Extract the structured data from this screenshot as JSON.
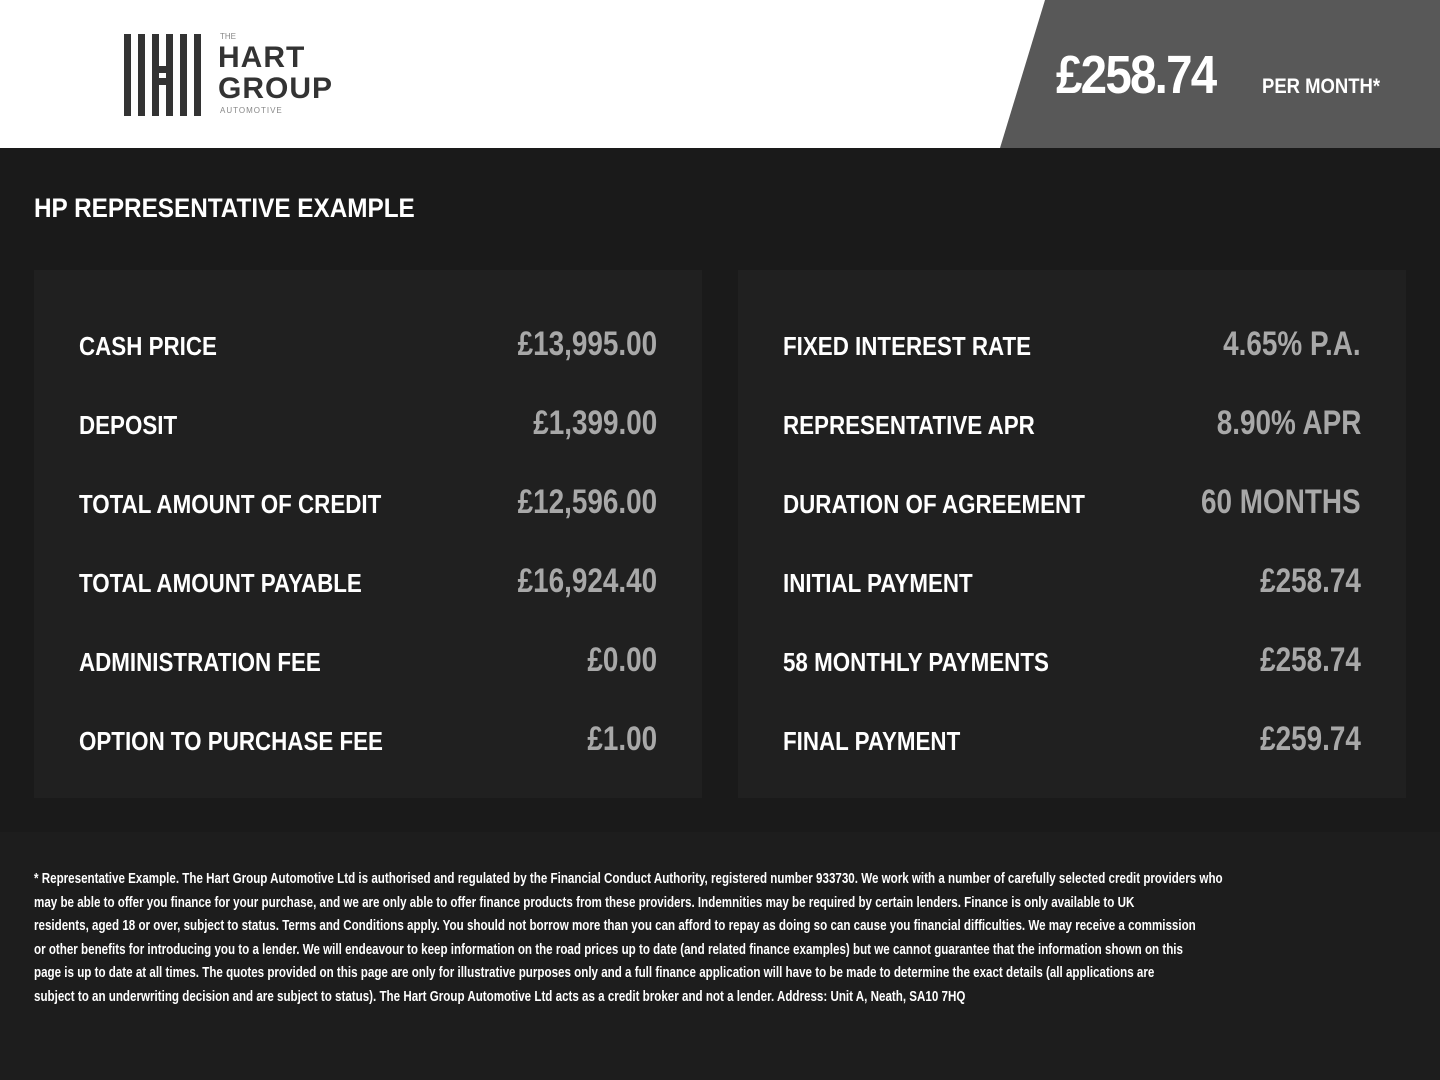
{
  "logo": {
    "the": "THE",
    "line1": "HART",
    "line2": "GROUP",
    "sub": "AUTOMOTIVE"
  },
  "header": {
    "price": "£258.74",
    "per_month": "PER MONTH*"
  },
  "title": "HP REPRESENTATIVE EXAMPLE",
  "left": [
    {
      "label": "CASH PRICE",
      "value": "£13,995.00"
    },
    {
      "label": "DEPOSIT",
      "value": "£1,399.00"
    },
    {
      "label": "TOTAL AMOUNT OF CREDIT",
      "value": "£12,596.00"
    },
    {
      "label": "TOTAL AMOUNT PAYABLE",
      "value": "£16,924.40"
    },
    {
      "label": "ADMINISTRATION FEE",
      "value": "£0.00"
    },
    {
      "label": "OPTION TO PURCHASE FEE",
      "value": "£1.00"
    }
  ],
  "right": [
    {
      "label": "FIXED INTEREST RATE",
      "value": "4.65% P.A."
    },
    {
      "label": "REPRESENTATIVE APR",
      "value": "8.90% APR"
    },
    {
      "label": "DURATION OF AGREEMENT",
      "value": "60 MONTHS"
    },
    {
      "label": "INITIAL PAYMENT",
      "value": "£258.74"
    },
    {
      "label": "58 MONTHLY PAYMENTS",
      "value": "£258.74"
    },
    {
      "label": "FINAL PAYMENT",
      "value": "£259.74"
    }
  ],
  "disclaimer": [
    "* Representative Example. The Hart Group Automotive Ltd is authorised and regulated by the Financial Conduct Authority, registered number 933730. We work with a number of carefully selected credit providers who",
    "may be able to offer you finance for your purchase, and we are only able to offer finance products from these providers. Indemnities may be required by certain lenders. Finance is only available to UK",
    "residents, aged 18 or over, subject to status. Terms and Conditions apply. You should not borrow more than you can afford to repay as doing so can cause you financial difficulties. We may receive a commission",
    "or other benefits for introducing you to a lender. We will endeavour to keep information on the road prices up to date (and related finance examples) but we cannot guarantee that the information shown on this",
    "page is up to date at all times. The quotes provided on this page are only for illustrative purposes only and a full finance application will have to be made to determine the exact details (all applications are",
    "subject to an underwriting decision and are subject to status). The Hart Group Automotive Ltd acts as a credit broker and not a lender. Address: Unit A, Neath, SA10 7HQ"
  ]
}
